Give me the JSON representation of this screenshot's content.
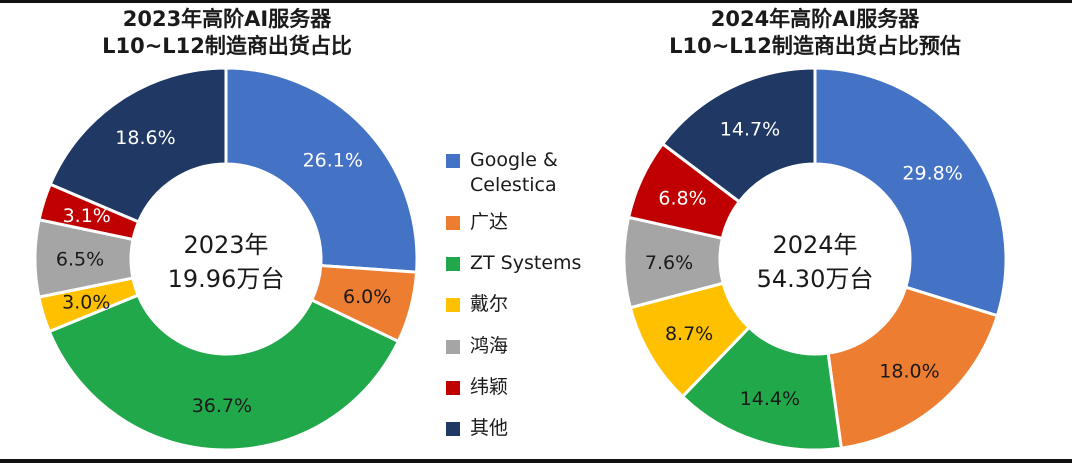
{
  "colors": {
    "google_celestica": "#4472C4",
    "guangda": "#ED7D31",
    "zt_systems": "#21A84A",
    "daier": "#FFC000",
    "honghai": "#A5A5A5",
    "weiying": "#C00000",
    "others": "#1F3864"
  },
  "legend": [
    {
      "label": "Google & Celestica",
      "color": "#4472C4"
    },
    {
      "label": "广达",
      "color": "#ED7D31"
    },
    {
      "label": "ZT Systems",
      "color": "#21A84A"
    },
    {
      "label": "戴尔",
      "color": "#FFC000"
    },
    {
      "label": "鸿海",
      "color": "#A5A5A5"
    },
    {
      "label": "纬颖",
      "color": "#C00000"
    },
    {
      "label": "其他",
      "color": "#1F3864"
    }
  ],
  "chart_data": [
    {
      "type": "pie",
      "title_line1": "2023年高阶AI服务器",
      "title_line2": "L10~L12制造商出货占比",
      "center_line1": "2023年",
      "center_line2": "19.96万台",
      "categories": [
        "Google & Celestica",
        "广达",
        "ZT Systems",
        "戴尔",
        "鸿海",
        "纬颖",
        "其他"
      ],
      "values": [
        26.1,
        6.0,
        36.7,
        3.0,
        6.5,
        3.1,
        18.6
      ],
      "value_labels": [
        "26.1%",
        "6.0%",
        "36.7%",
        "3.0%",
        "6.5%",
        "3.1%",
        "18.6%"
      ]
    },
    {
      "type": "pie",
      "title_line1": "2024年高阶AI服务器",
      "title_line2": "L10~L12制造商出货占比预估",
      "center_line1": "2024年",
      "center_line2": "54.30万台",
      "categories": [
        "Google & Celestica",
        "广达",
        "ZT Systems",
        "戴尔",
        "鸿海",
        "纬颖",
        "其他"
      ],
      "values": [
        29.8,
        18.0,
        14.4,
        8.7,
        7.6,
        6.8,
        14.7
      ],
      "value_labels": [
        "29.8%",
        "18.0%",
        "14.4%",
        "8.7%",
        "7.6%",
        "6.8%",
        "14.7%"
      ]
    }
  ]
}
